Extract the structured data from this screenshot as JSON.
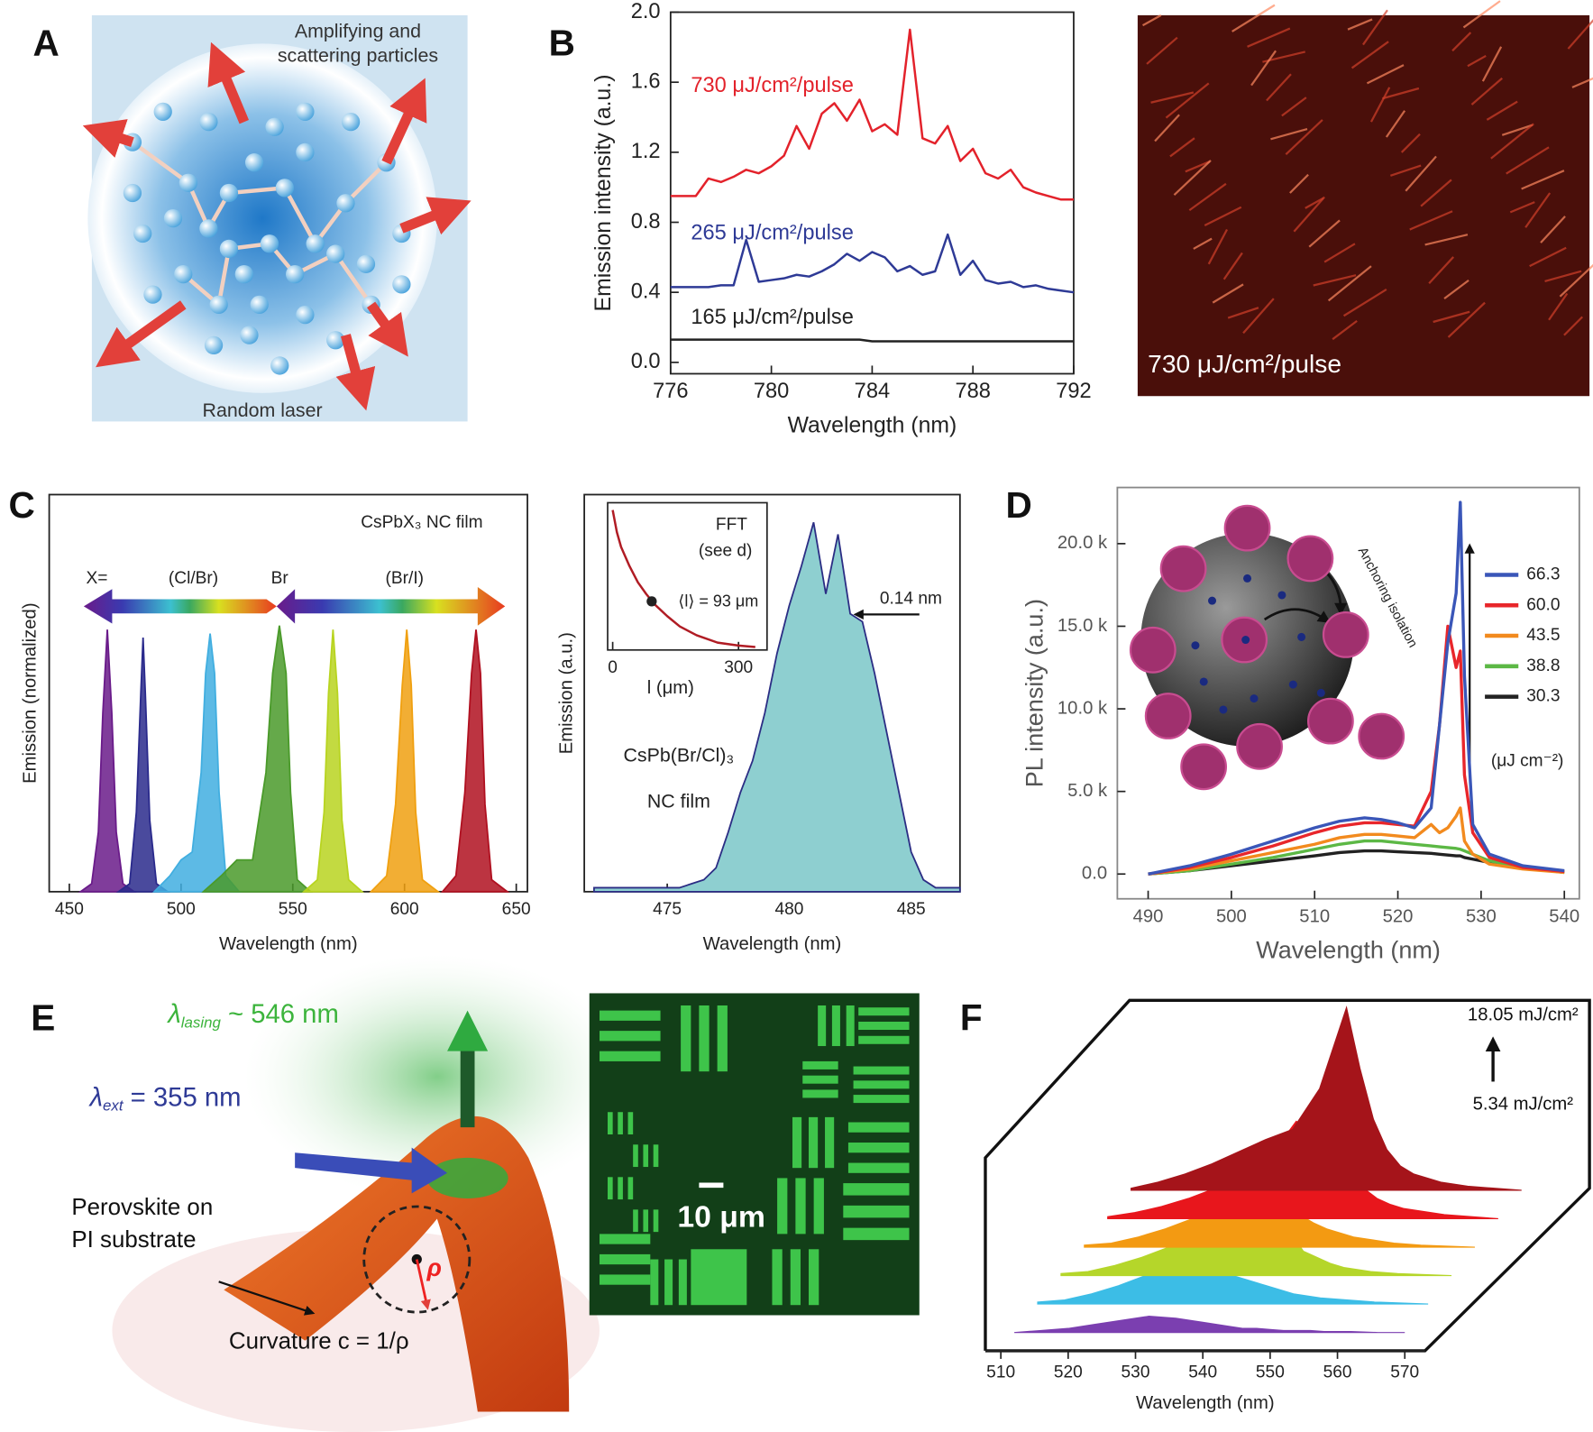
{
  "panel_labels": [
    "A",
    "B",
    "C",
    "D",
    "E",
    "F"
  ],
  "panel_a": {
    "particles_label": [
      "Amplifying and",
      "scattering particles"
    ],
    "caption": "Random laser"
  },
  "panel_b_image": {
    "caption": "730 μJ/cm²/pulse"
  },
  "panel_c_left": {
    "film_label": "CsPbX₃ NC film",
    "halides": [
      "X=",
      "(Cl/Br)",
      "Br",
      "(Br/I)"
    ]
  },
  "panel_c_right": {
    "linewidth": "0.14 nm",
    "film_label": [
      "CsPb(Br/Cl)₃",
      "NC film"
    ],
    "inset_title": "FFT",
    "inset_ref": "(see d)",
    "inset_mean": "⟨l⟩ = 93 μm"
  },
  "panel_d": {
    "inset_label": "Anchoring isolation"
  },
  "panel_e": {
    "lasing": {
      "symbol": "λ",
      "subscript": "lasing",
      "text": " ~ 546 nm"
    },
    "excitation": {
      "symbol": "λ",
      "subscript": "ext",
      "text": " = 355 nm"
    },
    "substrate_label": [
      "Perovskite on",
      "PI substrate"
    ],
    "curvature_label": "Curvature c = 1/ρ",
    "radius_label": "ρ",
    "scale_bar": "10 μm"
  },
  "panel_f": {
    "high_fluence": "18.05 mJ/cm²",
    "low_fluence": "5.34 mJ/cm²"
  },
  "chart_data": [
    {
      "type": "line",
      "x": [
        776,
        776.5,
        777,
        777.5,
        778,
        778.5,
        779,
        779.5,
        780,
        780.5,
        781,
        781.5,
        782,
        782.5,
        783,
        783.5,
        784,
        784.5,
        785,
        785.5,
        786,
        786.5,
        787,
        787.5,
        788,
        788.5,
        789,
        789.5,
        790,
        790.5,
        791,
        791.5,
        792
      ],
      "xlim": [
        776,
        792
      ],
      "xticks": [
        776,
        780,
        784,
        788,
        792
      ],
      "ylim": [
        -0.065,
        2.0
      ],
      "yticks": [
        {
          "value": 0,
          "label": "0.0"
        },
        0.4,
        0.8,
        1.2,
        1.6,
        {
          "value": 2,
          "label": "2.0"
        }
      ],
      "xlabel": "Wavelength (nm)",
      "ylabel": "Emission intensity (a.u.)",
      "series": [
        {
          "name": "730 μJ/cm²/pulse",
          "color": "#e3222b",
          "values": [
            0.95,
            0.95,
            0.95,
            1.05,
            1.03,
            1.06,
            1.1,
            1.08,
            1.12,
            1.18,
            1.35,
            1.22,
            1.42,
            1.48,
            1.38,
            1.5,
            1.32,
            1.36,
            1.3,
            1.9,
            1.28,
            1.25,
            1.35,
            1.15,
            1.22,
            1.08,
            1.05,
            1.1,
            1.0,
            0.97,
            0.95,
            0.93,
            0.93
          ]
        },
        {
          "name": "265 μJ/cm²/pulse",
          "color": "#2e3a96",
          "values": [
            0.43,
            0.43,
            0.43,
            0.43,
            0.44,
            0.44,
            0.7,
            0.46,
            0.47,
            0.48,
            0.5,
            0.49,
            0.52,
            0.56,
            0.62,
            0.58,
            0.63,
            0.6,
            0.52,
            0.55,
            0.5,
            0.52,
            0.73,
            0.5,
            0.58,
            0.47,
            0.45,
            0.46,
            0.43,
            0.44,
            0.42,
            0.41,
            0.4
          ]
        },
        {
          "name": "165 μJ/cm²/pulse",
          "color": "#222222",
          "values": [
            0.13,
            0.13,
            0.13,
            0.13,
            0.13,
            0.13,
            0.13,
            0.13,
            0.13,
            0.13,
            0.13,
            0.13,
            0.13,
            0.13,
            0.13,
            0.13,
            0.12,
            0.12,
            0.12,
            0.12,
            0.12,
            0.12,
            0.12,
            0.12,
            0.12,
            0.12,
            0.12,
            0.12,
            0.12,
            0.12,
            0.12,
            0.12,
            0.12
          ]
        }
      ]
    },
    {
      "type": "area",
      "xlim": [
        441,
        655
      ],
      "xticks": [
        450,
        500,
        550,
        600,
        650
      ],
      "ylim": [
        0,
        1
      ],
      "xlabel": "Wavelength (nm)",
      "ylabel": "Emission (normalized)",
      "series": [
        {
          "color": "#6a1b8a",
          "x": [
            455,
            460,
            463,
            465,
            467,
            469,
            471,
            474,
            479
          ],
          "values": [
            0,
            0.02,
            0.15,
            0.45,
            0.66,
            0.45,
            0.15,
            0.02,
            0
          ]
        },
        {
          "color": "#2a2a8c",
          "x": [
            472,
            477,
            480,
            482,
            483,
            484,
            486,
            489,
            494
          ],
          "values": [
            0,
            0.02,
            0.2,
            0.5,
            0.64,
            0.5,
            0.18,
            0.02,
            0
          ]
        },
        {
          "color": "#41aee0",
          "x": [
            488,
            495,
            500,
            505,
            509,
            511,
            513,
            515,
            517,
            520,
            526
          ],
          "values": [
            0,
            0.04,
            0.08,
            0.1,
            0.3,
            0.55,
            0.65,
            0.55,
            0.25,
            0.04,
            0
          ]
        },
        {
          "color": "#4a9a2a",
          "x": [
            510,
            518,
            525,
            532,
            538,
            541,
            544,
            547,
            549,
            552,
            558
          ],
          "values": [
            0,
            0.04,
            0.08,
            0.08,
            0.3,
            0.55,
            0.67,
            0.55,
            0.25,
            0.03,
            0
          ]
        },
        {
          "color": "#b8d420",
          "x": [
            555,
            561,
            564,
            566,
            568,
            570,
            572,
            575,
            581
          ],
          "values": [
            0,
            0.03,
            0.2,
            0.5,
            0.66,
            0.5,
            0.18,
            0.03,
            0
          ]
        },
        {
          "color": "#f0a010",
          "x": [
            585,
            592,
            596,
            599,
            601,
            603,
            605,
            608,
            615
          ],
          "values": [
            0,
            0.04,
            0.22,
            0.52,
            0.66,
            0.52,
            0.2,
            0.03,
            0
          ]
        },
        {
          "color": "#b01020",
          "x": [
            617,
            623,
            627,
            630,
            632,
            634,
            636,
            639,
            646
          ],
          "values": [
            0,
            0.04,
            0.25,
            0.55,
            0.66,
            0.55,
            0.22,
            0.03,
            0
          ]
        }
      ]
    },
    {
      "type": "area",
      "x": [
        472,
        472.5,
        473,
        473.5,
        474,
        474.5,
        475,
        475.5,
        476,
        476.5,
        477,
        477.5,
        478,
        478.5,
        479,
        479.5,
        480,
        480.5,
        481,
        481.5,
        482,
        482.5,
        483,
        483.5,
        484,
        484.5,
        485,
        485.5,
        486,
        486.5,
        487
      ],
      "xlim": [
        471.6,
        487
      ],
      "xticks": [
        475,
        480,
        485
      ],
      "ylim": [
        0,
        1
      ],
      "xlabel": "Wavelength (nm)",
      "ylabel": "Emission (a.u.)",
      "series": [
        {
          "color": "#2b2d84",
          "fill": "#8ecfd0",
          "values": [
            0.01,
            0.01,
            0.01,
            0.01,
            0.01,
            0.01,
            0.01,
            0.01,
            0.02,
            0.03,
            0.06,
            0.15,
            0.25,
            0.33,
            0.45,
            0.6,
            0.72,
            0.82,
            0.93,
            0.75,
            0.9,
            0.7,
            0.68,
            0.55,
            0.4,
            0.25,
            0.1,
            0.03,
            0.01,
            0.01,
            0.01
          ]
        }
      ]
    },
    {
      "type": "line",
      "x": [
        0,
        10,
        20,
        40,
        60,
        80,
        100,
        130,
        160,
        200,
        250,
        300,
        340
      ],
      "xlim": [
        -12,
        368
      ],
      "xticks": [
        0,
        300
      ],
      "ylim": [
        0,
        1
      ],
      "xlabel": "l (μm)",
      "series": [
        {
          "color": "#b01c24",
          "values": [
            0.95,
            0.8,
            0.7,
            0.57,
            0.46,
            0.38,
            0.31,
            0.23,
            0.16,
            0.1,
            0.05,
            0.03,
            0.02
          ]
        }
      ],
      "point": {
        "x": 93,
        "y": 0.33,
        "color": "#222222"
      }
    },
    {
      "type": "line",
      "x": [
        490,
        495,
        500,
        505,
        510,
        513,
        516,
        518,
        520,
        522,
        524,
        525,
        526,
        527,
        527.5,
        528,
        529,
        531,
        535,
        540
      ],
      "xlim": [
        486.3,
        541.8
      ],
      "xticks": [
        490,
        500,
        510,
        520,
        530,
        540
      ],
      "ylim": [
        -1500,
        23400
      ],
      "yticks": [
        {
          "value": 0,
          "label": "0.0"
        },
        {
          "value": 5000,
          "label": "5.0 k"
        },
        {
          "value": 10000,
          "label": "10.0 k"
        },
        {
          "value": 15000,
          "label": "15.0 k"
        },
        {
          "value": 20000,
          "label": "20.0 k"
        }
      ],
      "xlabel": "Wavelength (nm)",
      "ylabel": "PL intensity (a.u.)",
      "legend": "right",
      "legend_title": "(μJ cm⁻²)",
      "series": [
        {
          "name": "66.3",
          "color": "#3a56b8",
          "values": [
            0,
            500,
            1200,
            2000,
            2800,
            3200,
            3400,
            3300,
            3100,
            2800,
            4000,
            9000,
            14000,
            17000,
            22500,
            12000,
            3000,
            1200,
            500,
            200
          ]
        },
        {
          "name": "60.0",
          "color": "#e8262b",
          "values": [
            0,
            400,
            1000,
            1700,
            2500,
            2900,
            3100,
            3100,
            3000,
            2900,
            5000,
            9000,
            15000,
            12500,
            13500,
            6000,
            2500,
            1000,
            400,
            150
          ]
        },
        {
          "name": "43.5",
          "color": "#f28a1e",
          "values": [
            0,
            300,
            800,
            1300,
            1800,
            2200,
            2400,
            2400,
            2300,
            2200,
            3000,
            2500,
            2800,
            3500,
            4000,
            2000,
            1200,
            600,
            300,
            100
          ]
        },
        {
          "name": "38.8",
          "color": "#5cb845",
          "values": [
            0,
            200,
            600,
            1000,
            1500,
            1800,
            2000,
            2000,
            1900,
            1800,
            1700,
            1650,
            1600,
            1550,
            1500,
            1400,
            1200,
            800,
            400,
            100
          ]
        },
        {
          "name": "30.3",
          "color": "#222222",
          "values": [
            0,
            200,
            500,
            800,
            1100,
            1300,
            1400,
            1400,
            1350,
            1300,
            1250,
            1200,
            1150,
            1100,
            1100,
            1000,
            900,
            700,
            400,
            100
          ]
        }
      ]
    },
    {
      "type": "waterfall",
      "x": [
        512,
        516,
        520,
        524,
        528,
        532,
        536,
        540,
        544,
        546,
        548,
        550,
        552,
        554,
        556,
        558,
        562,
        566,
        570
      ],
      "xlim": [
        507.7,
        573
      ],
      "xticks": [
        510,
        520,
        530,
        540,
        550,
        560,
        570
      ],
      "ylim": [
        0,
        1
      ],
      "xlabel": "Wavelength (nm)",
      "series": [
        {
          "color": "#7b3fb0",
          "values": [
            0,
            0.01,
            0.02,
            0.04,
            0.06,
            0.08,
            0.07,
            0.05,
            0.03,
            0.02,
            0.02,
            0.015,
            0.01,
            0.01,
            0.01,
            0.005,
            0.005,
            0,
            0
          ]
        },
        {
          "color": "#3cbde6",
          "values": [
            0.01,
            0.02,
            0.05,
            0.09,
            0.14,
            0.17,
            0.18,
            0.15,
            0.11,
            0.09,
            0.07,
            0.05,
            0.04,
            0.03,
            0.025,
            0.02,
            0.01,
            0.005,
            0
          ]
        },
        {
          "color": "#b5d62a",
          "values": [
            0.01,
            0.02,
            0.05,
            0.09,
            0.14,
            0.17,
            0.19,
            0.18,
            0.17,
            0.22,
            0.12,
            0.09,
            0.06,
            0.04,
            0.03,
            0.02,
            0.01,
            0.005,
            0
          ]
        },
        {
          "color": "#f39a12",
          "values": [
            0.01,
            0.02,
            0.05,
            0.09,
            0.14,
            0.17,
            0.19,
            0.27,
            0.16,
            0.12,
            0.09,
            0.07,
            0.05,
            0.04,
            0.03,
            0.02,
            0.01,
            0.005,
            0
          ]
        },
        {
          "color": "#e8161c",
          "values": [
            0.01,
            0.03,
            0.06,
            0.1,
            0.15,
            0.2,
            0.3,
            0.48,
            0.4,
            0.5,
            0.25,
            0.15,
            0.1,
            0.07,
            0.05,
            0.04,
            0.02,
            0.01,
            0
          ]
        },
        {
          "color": "#a5141a",
          "values": [
            0.01,
            0.04,
            0.08,
            0.13,
            0.19,
            0.25,
            0.3,
            0.5,
            0.9,
            0.6,
            0.35,
            0.2,
            0.12,
            0.08,
            0.06,
            0.04,
            0.02,
            0.01,
            0
          ]
        }
      ]
    }
  ]
}
